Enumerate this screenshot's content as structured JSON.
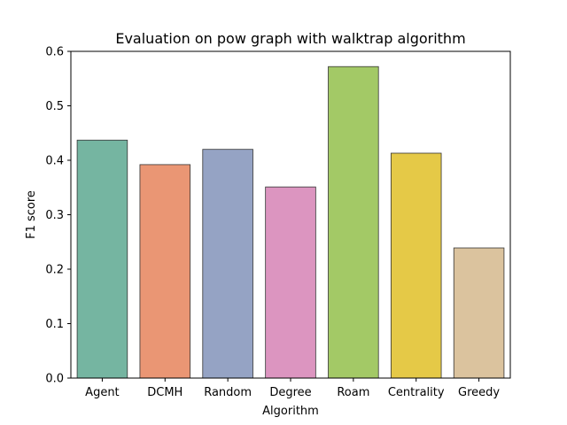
{
  "chart_data": {
    "type": "bar",
    "title": "Evaluation on pow graph with walktrap algorithm",
    "xlabel": "Algorithm",
    "ylabel": "F1 score",
    "ylim": [
      0,
      0.6
    ],
    "yticks": [
      0.0,
      0.1,
      0.2,
      0.3,
      0.4,
      0.5,
      0.6
    ],
    "ytick_labels": [
      "0.0",
      "0.1",
      "0.2",
      "0.3",
      "0.4",
      "0.5",
      "0.6"
    ],
    "grid": false,
    "categories": [
      "Agent",
      "DCMH",
      "Random",
      "Degree",
      "Roam",
      "Centrality",
      "Greedy"
    ],
    "values": [
      0.437,
      0.392,
      0.42,
      0.351,
      0.572,
      0.413,
      0.239
    ],
    "colors": [
      "#75b5a1",
      "#ea9674",
      "#95a3c4",
      "#dc95c0",
      "#a3c966",
      "#e5c947",
      "#dbc39e"
    ],
    "edge_color": "#333333"
  }
}
